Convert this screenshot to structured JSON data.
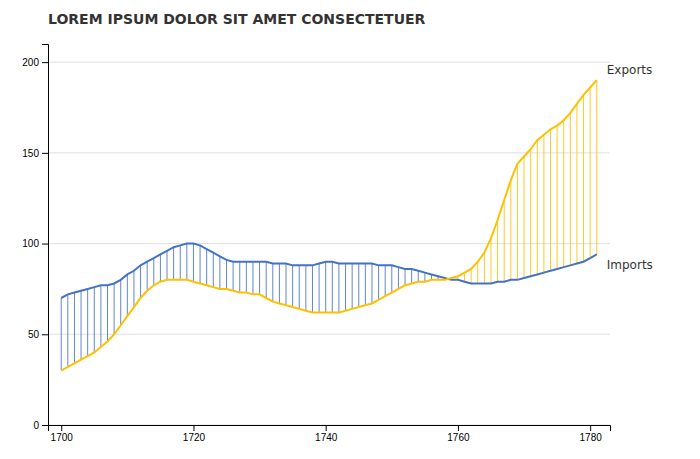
{
  "chart_data": {
    "type": "line",
    "title": "LOREM IPSUM DOLOR SIT AMET CONSECTETUER",
    "x": [
      1700,
      1701,
      1702,
      1703,
      1704,
      1705,
      1706,
      1707,
      1708,
      1709,
      1710,
      1711,
      1712,
      1713,
      1714,
      1715,
      1716,
      1717,
      1718,
      1719,
      1720,
      1721,
      1722,
      1723,
      1724,
      1725,
      1726,
      1727,
      1728,
      1729,
      1730,
      1731,
      1732,
      1733,
      1734,
      1735,
      1736,
      1737,
      1738,
      1739,
      1740,
      1741,
      1742,
      1743,
      1744,
      1745,
      1746,
      1747,
      1748,
      1749,
      1750,
      1751,
      1752,
      1753,
      1754,
      1755,
      1756,
      1757,
      1758,
      1759,
      1760,
      1761,
      1762,
      1763,
      1764,
      1765,
      1766,
      1767,
      1768,
      1769,
      1770,
      1771,
      1772,
      1773,
      1774,
      1775,
      1776,
      1777,
      1778,
      1779,
      1780,
      1781
    ],
    "series": [
      {
        "name": "Imports",
        "color": "#4472C4",
        "values": [
          70,
          72,
          73,
          74,
          75,
          76,
          77,
          77,
          78,
          80,
          83,
          85,
          88,
          90,
          92,
          94,
          96,
          98,
          99,
          100,
          100,
          99,
          97,
          95,
          93,
          91,
          90,
          90,
          90,
          90,
          90,
          90,
          89,
          89,
          89,
          88,
          88,
          88,
          88,
          89,
          90,
          90,
          89,
          89,
          89,
          89,
          89,
          89,
          88,
          88,
          88,
          87,
          86,
          86,
          85,
          84,
          83,
          82,
          81,
          80,
          80,
          79,
          78,
          78,
          78,
          78,
          79,
          79,
          80,
          80,
          81,
          82,
          83,
          84,
          85,
          86,
          87,
          88,
          89,
          90,
          92,
          94
        ]
      },
      {
        "name": "Exports",
        "color": "#FFC000",
        "values": [
          30,
          32,
          34,
          36,
          38,
          40,
          43,
          46,
          50,
          55,
          60,
          65,
          70,
          74,
          77,
          79,
          80,
          80,
          80,
          80,
          79,
          78,
          77,
          76,
          75,
          75,
          74,
          73,
          73,
          72,
          72,
          70,
          68,
          67,
          66,
          65,
          64,
          63,
          62,
          62,
          62,
          62,
          62,
          63,
          64,
          65,
          66,
          67,
          69,
          71,
          73,
          75,
          77,
          78,
          79,
          79,
          80,
          80,
          80,
          81,
          82,
          84,
          86,
          90,
          95,
          103,
          113,
          124,
          135,
          144,
          148,
          152,
          157,
          160,
          163,
          165,
          168,
          172,
          177,
          182,
          186,
          190
        ]
      }
    ],
    "xlim": [
      1698,
      1783
    ],
    "ylim": [
      0,
      210
    ],
    "xticks": [
      1700,
      1720,
      1740,
      1760,
      1780
    ],
    "yticks": [
      0,
      50,
      100,
      150,
      200
    ],
    "grid": true
  }
}
